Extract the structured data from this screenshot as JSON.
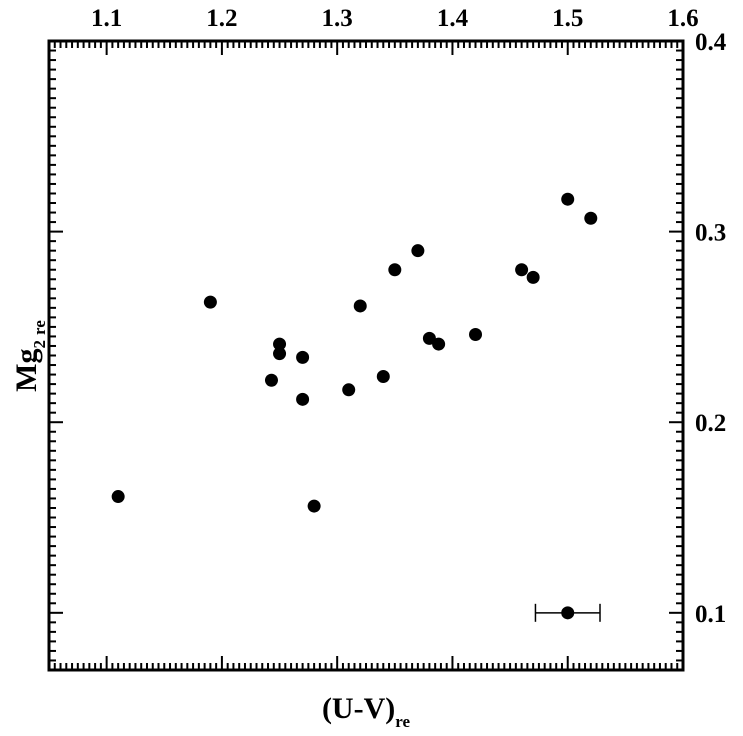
{
  "chart_data": {
    "type": "scatter",
    "title": "",
    "xlabel": {
      "main": "(U-V)",
      "sub": "re"
    },
    "ylabel": {
      "main": "Mg",
      "sub1": "2",
      "sub2": "re"
    },
    "xlim": [
      1.05,
      1.6
    ],
    "ylim": [
      0.07,
      0.4
    ],
    "x_ticks": [
      "1.1",
      "1.2",
      "1.3",
      "1.4",
      "1.5",
      "1.6"
    ],
    "y_ticks": [
      "0.1",
      "0.2",
      "0.3",
      "0.4"
    ],
    "x_tick_position": "top",
    "y_tick_position": "right",
    "grid": false,
    "series": [
      {
        "points": [
          {
            "x": 1.11,
            "y": 0.161
          },
          {
            "x": 1.19,
            "y": 0.263
          },
          {
            "x": 1.243,
            "y": 0.222
          },
          {
            "x": 1.25,
            "y": 0.241
          },
          {
            "x": 1.25,
            "y": 0.236
          },
          {
            "x": 1.27,
            "y": 0.234
          },
          {
            "x": 1.27,
            "y": 0.212
          },
          {
            "x": 1.28,
            "y": 0.156
          },
          {
            "x": 1.31,
            "y": 0.217
          },
          {
            "x": 1.32,
            "y": 0.261
          },
          {
            "x": 1.34,
            "y": 0.224
          },
          {
            "x": 1.35,
            "y": 0.28
          },
          {
            "x": 1.37,
            "y": 0.29
          },
          {
            "x": 1.38,
            "y": 0.244
          },
          {
            "x": 1.388,
            "y": 0.241
          },
          {
            "x": 1.42,
            "y": 0.246
          },
          {
            "x": 1.46,
            "y": 0.28
          },
          {
            "x": 1.47,
            "y": 0.276
          },
          {
            "x": 1.5,
            "y": 0.317
          },
          {
            "x": 1.52,
            "y": 0.307
          }
        ]
      }
    ],
    "error_bar_example": {
      "x": 1.5,
      "y": 0.1,
      "x_err": 0.028
    }
  }
}
